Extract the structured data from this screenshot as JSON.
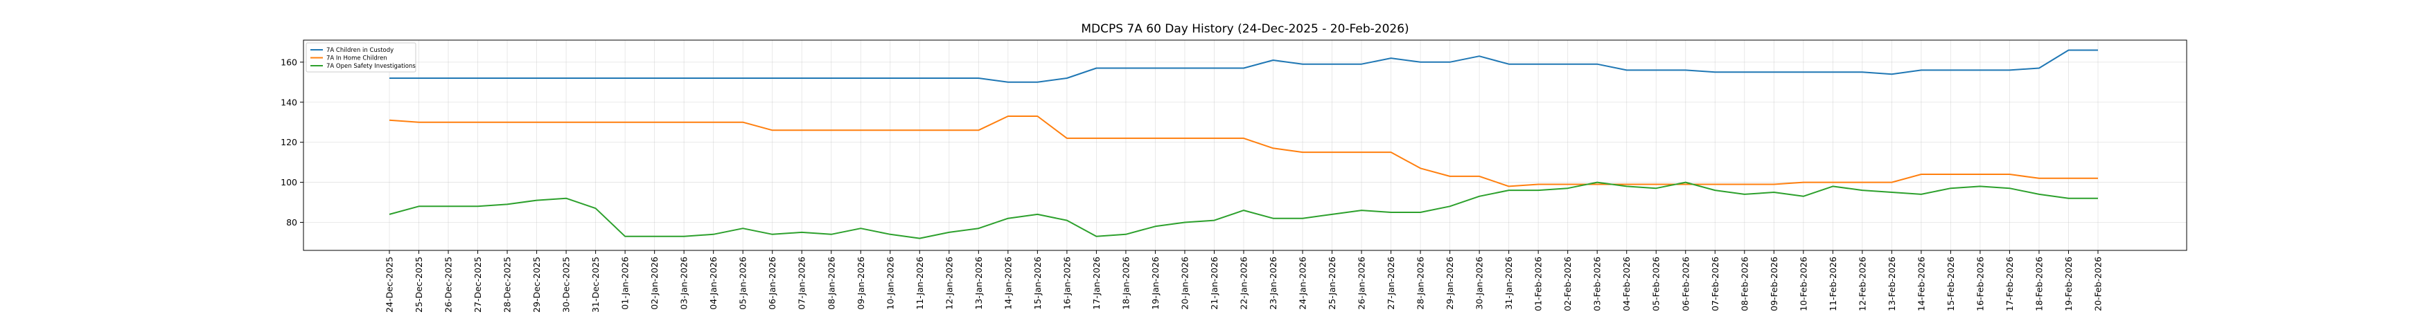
{
  "chart_data": {
    "type": "line",
    "title": "MDCPS 7A 60 Day History (24-Dec-2025 - 20-Feb-2026)",
    "xlabel": "",
    "ylabel": "",
    "ylim": [
      66,
      171
    ],
    "yticks": [
      80,
      100,
      120,
      140,
      160
    ],
    "grid": true,
    "legend_position": "upper-left",
    "categories": [
      "24-Dec-2025",
      "25-Dec-2025",
      "26-Dec-2025",
      "27-Dec-2025",
      "28-Dec-2025",
      "29-Dec-2025",
      "30-Dec-2025",
      "31-Dec-2025",
      "01-Jan-2026",
      "02-Jan-2026",
      "03-Jan-2026",
      "04-Jan-2026",
      "05-Jan-2026",
      "06-Jan-2026",
      "07-Jan-2026",
      "08-Jan-2026",
      "09-Jan-2026",
      "10-Jan-2026",
      "11-Jan-2026",
      "12-Jan-2026",
      "13-Jan-2026",
      "14-Jan-2026",
      "15-Jan-2026",
      "16-Jan-2026",
      "17-Jan-2026",
      "18-Jan-2026",
      "19-Jan-2026",
      "20-Jan-2026",
      "21-Jan-2026",
      "22-Jan-2026",
      "23-Jan-2026",
      "24-Jan-2026",
      "25-Jan-2026",
      "26-Jan-2026",
      "27-Jan-2026",
      "28-Jan-2026",
      "29-Jan-2026",
      "30-Jan-2026",
      "31-Jan-2026",
      "01-Feb-2026",
      "02-Feb-2026",
      "03-Feb-2026",
      "04-Feb-2026",
      "05-Feb-2026",
      "06-Feb-2026",
      "07-Feb-2026",
      "08-Feb-2026",
      "09-Feb-2026",
      "10-Feb-2026",
      "11-Feb-2026",
      "12-Feb-2026",
      "13-Feb-2026",
      "14-Feb-2026",
      "15-Feb-2026",
      "16-Feb-2026",
      "17-Feb-2026",
      "18-Feb-2026",
      "19-Feb-2026",
      "20-Feb-2026"
    ],
    "series": [
      {
        "name": "7A Children in Custody",
        "color": "#1f77b4",
        "values": [
          152,
          152,
          152,
          152,
          152,
          152,
          152,
          152,
          152,
          152,
          152,
          152,
          152,
          152,
          152,
          152,
          152,
          152,
          152,
          152,
          152,
          150,
          150,
          152,
          157,
          157,
          157,
          157,
          157,
          157,
          161,
          159,
          159,
          159,
          162,
          160,
          160,
          163,
          159,
          159,
          159,
          159,
          156,
          156,
          156,
          155,
          155,
          155,
          155,
          155,
          155,
          154,
          156,
          156,
          156,
          156,
          157,
          166,
          166
        ]
      },
      {
        "name": "7A In Home Children",
        "color": "#ff7f0e",
        "values": [
          131,
          130,
          130,
          130,
          130,
          130,
          130,
          130,
          130,
          130,
          130,
          130,
          130,
          126,
          126,
          126,
          126,
          126,
          126,
          126,
          126,
          133,
          133,
          122,
          122,
          122,
          122,
          122,
          122,
          122,
          117,
          115,
          115,
          115,
          115,
          107,
          103,
          103,
          98,
          99,
          99,
          99,
          99,
          99,
          99,
          99,
          99,
          99,
          100,
          100,
          100,
          100,
          104,
          104,
          104,
          104,
          102,
          102,
          102
        ]
      },
      {
        "name": "7A Open Safety Investigations",
        "color": "#2ca02c",
        "values": [
          84,
          88,
          88,
          88,
          89,
          91,
          92,
          87,
          73,
          73,
          73,
          74,
          77,
          74,
          75,
          74,
          77,
          74,
          72,
          75,
          77,
          82,
          84,
          81,
          73,
          74,
          78,
          80,
          81,
          86,
          82,
          82,
          84,
          86,
          85,
          85,
          88,
          93,
          96,
          96,
          97,
          100,
          98,
          97,
          100,
          96,
          94,
          95,
          93,
          98,
          96,
          95,
          94,
          97,
          98,
          97,
          94,
          92,
          92
        ]
      }
    ]
  }
}
